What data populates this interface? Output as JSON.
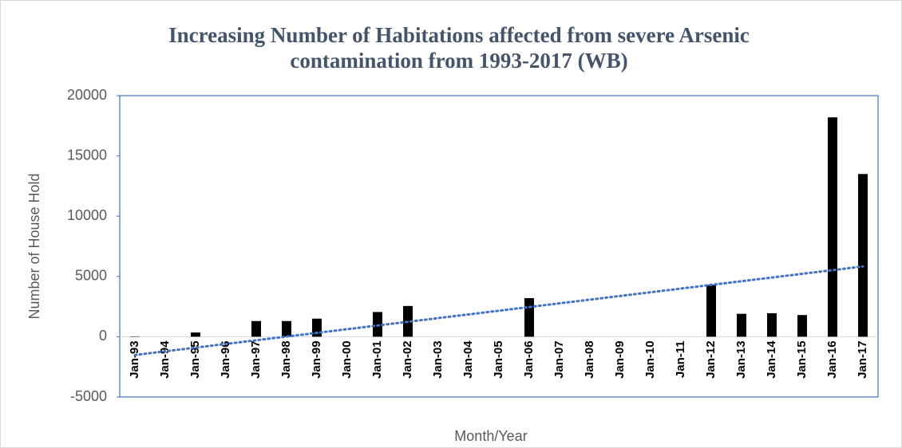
{
  "chart_data": {
    "type": "bar",
    "title": "Increasing Number of Habitations affected from severe Arsenic contamination from 1993-2017 (WB)",
    "x_label": "Month/Year",
    "y_label": "Number of House Hold",
    "categories": [
      "Jan-93",
      "Jan-94",
      "Jan-95",
      "Jan-96",
      "Jan-97",
      "Jan-98",
      "Jan-99",
      "Jan-00",
      "Jan-01",
      "Jan-02",
      "Jan-03",
      "Jan-04",
      "Jan-05",
      "Jan-06",
      "Jan-07",
      "Jan-08",
      "Jan-09",
      "Jan-10",
      "Jan-11",
      "Jan-12",
      "Jan-13",
      "Jan-14",
      "Jan-15",
      "Jan-16",
      "Jan-17"
    ],
    "values": [
      30,
      0,
      350,
      0,
      1300,
      1300,
      1500,
      0,
      2050,
      2550,
      0,
      0,
      0,
      3200,
      0,
      0,
      0,
      0,
      0,
      4300,
      1900,
      1950,
      1800,
      18200,
      13500
    ],
    "color": "#000000",
    "ylim": [
      -5000,
      20000
    ],
    "yticks": [
      -5000,
      0,
      5000,
      10000,
      15000,
      20000
    ],
    "trendline": true,
    "trend_color": "#4472c4"
  }
}
